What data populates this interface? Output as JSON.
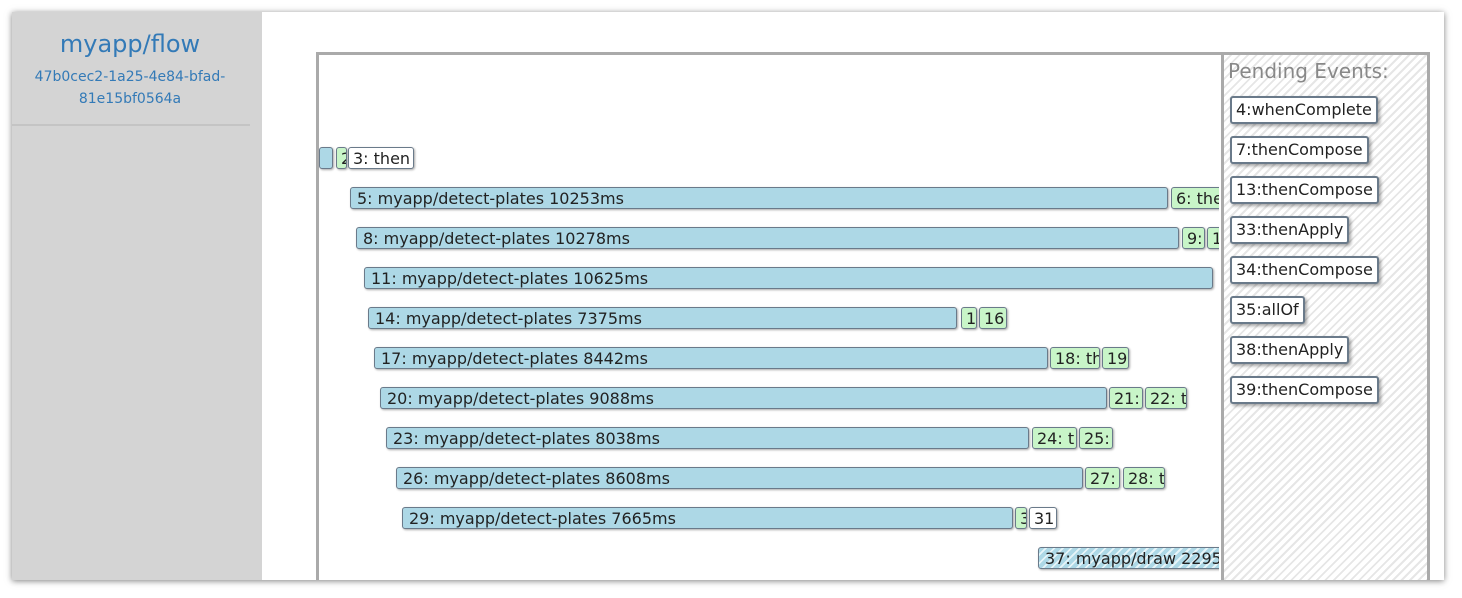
{
  "sidebar": {
    "title": "myapp/flow",
    "flow_id": "47b0cec2-1a25-4e84-bfad-81e15bf0564a"
  },
  "timeline": {
    "rows": [
      [
        "2",
        "3: then"
      ],
      [
        "5: myapp/detect-plates 10253ms",
        "6: the"
      ],
      [
        "8: myapp/detect-plates 10278ms",
        "9:",
        "1"
      ],
      [
        "11: myapp/detect-plates 10625ms"
      ],
      [
        "14: myapp/detect-plates 7375ms",
        "1",
        "16"
      ],
      [
        "17: myapp/detect-plates 8442ms",
        "18: th",
        "19"
      ],
      [
        "20: myapp/detect-plates 9088ms",
        "21:",
        "22: t"
      ],
      [
        "23: myapp/detect-plates 8038ms",
        "24: t",
        "25:"
      ],
      [
        "26: myapp/detect-plates 8608ms",
        "27:",
        "28: t"
      ],
      [
        "29: myapp/detect-plates 7665ms",
        "3",
        "31"
      ],
      [
        "37: myapp/draw 2295"
      ]
    ]
  },
  "pending": {
    "heading": "Pending Events:",
    "items": [
      "4:whenComplete",
      "7:thenCompose",
      "13:thenCompose",
      "33:thenApply",
      "34:thenCompose",
      "35:allOf",
      "38:thenApply",
      "39:thenCompose"
    ]
  }
}
